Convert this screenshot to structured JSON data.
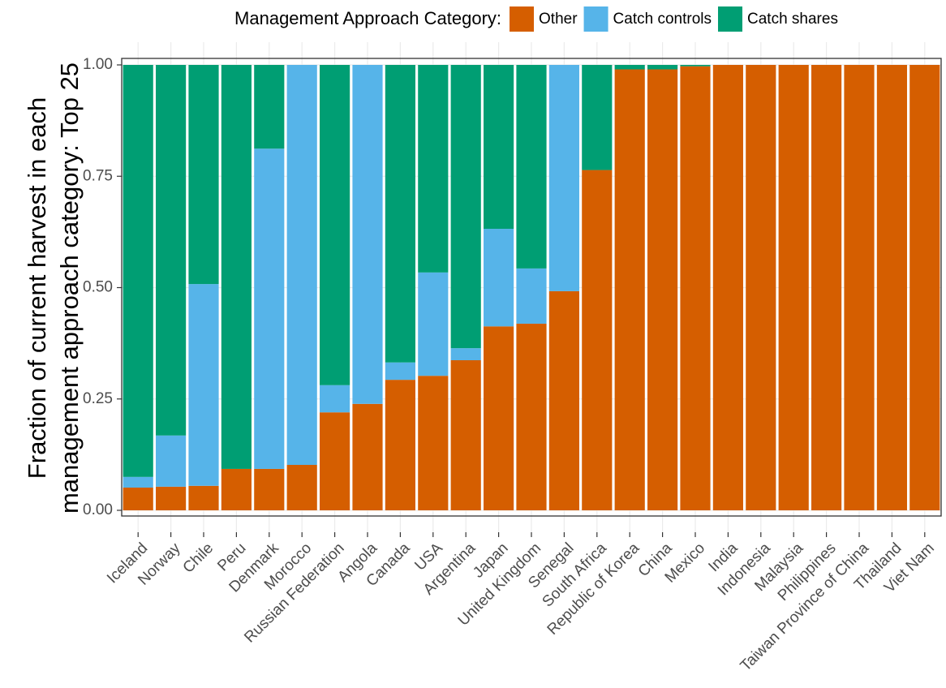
{
  "chart_data": {
    "type": "stacked_bar",
    "y_label": [
      "Fraction of current harvest in each",
      "management approach category: Top 25"
    ],
    "legend_title": "Management Approach Category:",
    "legend_position": "top",
    "grid": true,
    "categories": [
      "Iceland",
      "Norway",
      "Chile",
      "Peru",
      "Denmark",
      "Morocco",
      "Russian Federation",
      "Angola",
      "Canada",
      "USA",
      "Argentina",
      "Japan",
      "United Kingdom",
      "Senegal",
      "South Africa",
      "Republic of Korea",
      "China",
      "Mexico",
      "India",
      "Indonesia",
      "Malaysia",
      "Philippines",
      "Taiwan Province of China",
      "Thailand",
      "Viet Nam"
    ],
    "series": [
      {
        "name": "Other",
        "color": "#D55E00",
        "values": [
          0.051,
          0.053,
          0.055,
          0.093,
          0.093,
          0.102,
          0.22,
          0.239,
          0.293,
          0.302,
          0.337,
          0.413,
          0.419,
          0.492,
          0.764,
          0.99,
          0.99,
          0.997,
          1,
          1,
          1,
          1,
          1,
          1,
          1
        ]
      },
      {
        "name": "Catch controls",
        "color": "#56B4E9",
        "values": [
          0.024,
          0.115,
          0.453,
          0,
          0.719,
          0.898,
          0.061,
          0.761,
          0.039,
          0.232,
          0.027,
          0.219,
          0.124,
          0.508,
          0,
          0,
          0,
          0,
          0,
          0,
          0,
          0,
          0,
          0,
          0
        ]
      },
      {
        "name": "Catch shares",
        "color": "#009E73",
        "values": [
          0.925,
          0.832,
          0.492,
          0.907,
          0.188,
          0,
          0.719,
          0,
          0.668,
          0.466,
          0.636,
          0.368,
          0.457,
          0,
          0.236,
          0.01,
          0.01,
          0.003,
          0,
          0,
          0,
          0,
          0,
          0,
          0
        ]
      }
    ],
    "ylim": [
      0,
      1
    ],
    "yticks": [
      {
        "value": 0,
        "label": "0.00"
      },
      {
        "value": 0.25,
        "label": "0.25"
      },
      {
        "value": 0.5,
        "label": "0.50"
      },
      {
        "value": 0.75,
        "label": "0.75"
      },
      {
        "value": 1,
        "label": "1.00"
      }
    ]
  }
}
